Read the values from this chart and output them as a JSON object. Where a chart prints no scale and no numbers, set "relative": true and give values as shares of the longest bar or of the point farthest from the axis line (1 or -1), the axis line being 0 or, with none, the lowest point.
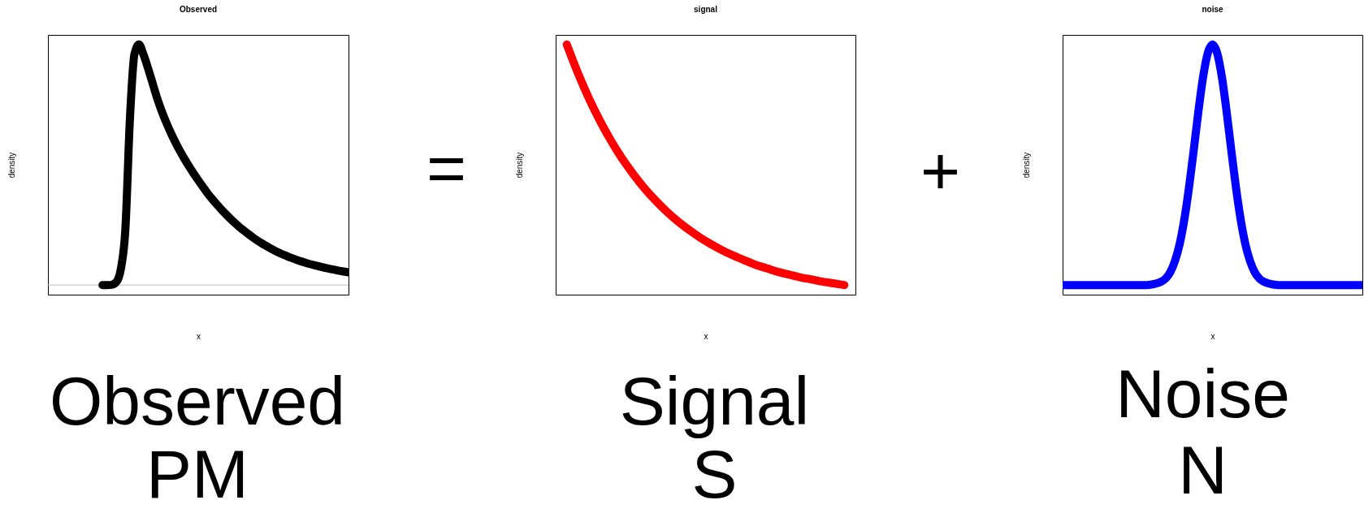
{
  "chart_data": [
    {
      "type": "line",
      "title": "Observed",
      "xlabel": "x",
      "ylabel": "density",
      "relative": true,
      "categories": [
        null,
        null,
        null,
        null,
        null,
        null,
        null,
        null,
        null,
        null,
        null,
        null,
        null,
        null,
        null,
        null,
        null,
        null,
        null,
        null,
        null,
        null,
        null,
        null,
        null,
        null,
        null,
        null,
        null,
        null,
        null,
        null,
        null,
        null,
        null,
        null,
        null,
        null,
        null,
        null,
        null,
        null,
        null,
        null,
        null,
        null,
        null,
        null,
        null,
        null,
        null,
        null,
        null,
        null,
        null,
        null,
        null,
        null,
        null,
        null,
        null,
        null,
        null,
        null,
        null,
        null,
        null
      ],
      "series": [
        {
          "color": "#000000",
          "values": [
            null,
            null,
            null,
            null,
            null,
            null,
            null,
            null,
            null,
            null,
            null,
            null,
            0,
            0,
            0.001,
            0.012,
            0.066,
            0.23,
            0.69,
            0.96,
            1,
            0.957,
            0.9,
            0.838,
            0.776,
            0.722,
            0.675,
            0.632,
            0.593,
            0.557,
            0.524,
            0.493,
            0.464,
            0.436,
            0.409,
            0.383,
            0.359,
            0.337,
            0.316,
            0.296,
            0.277,
            0.259,
            0.242,
            0.227,
            0.212,
            0.198,
            0.185,
            0.173,
            0.162,
            0.151,
            0.141,
            0.132,
            0.124,
            0.116,
            0.109,
            0.102,
            0.096,
            0.09,
            0.085,
            0.08,
            0.075,
            0.071,
            0.067,
            0.063,
            0.059,
            0.056,
            0.053
          ]
        }
      ],
      "ref_lines": [
        {
          "axis": "y",
          "value": 0,
          "color": "#bebebe"
        }
      ],
      "annotations": [
        "Observed",
        "PM"
      ]
    },
    {
      "type": "other",
      "annotations": [
        "="
      ]
    },
    {
      "type": "line",
      "title": "signal",
      "xlabel": "x",
      "ylabel": "density",
      "relative": true,
      "categories": [
        null,
        null,
        null,
        null,
        null,
        null,
        null,
        null,
        null,
        null,
        null,
        null,
        null,
        null,
        null,
        null,
        null,
        null,
        null,
        null,
        null,
        null,
        null,
        null,
        null,
        null,
        null,
        null
      ],
      "series": [
        {
          "color": "#ff0000",
          "values": [
            null,
            1,
            0.886,
            0.784,
            0.694,
            0.614,
            0.543,
            0.481,
            0.425,
            0.376,
            0.332,
            0.293,
            0.259,
            0.228,
            0.201,
            0.177,
            0.156,
            0.137,
            0.119,
            0.105,
            0.091,
            0.08,
            0.069,
            0.061,
            0.052,
            0.045,
            0.038,
            null
          ]
        }
      ],
      "annotations": [
        "Signal",
        "S"
      ]
    },
    {
      "type": "other",
      "annotations": [
        "+"
      ]
    },
    {
      "type": "line",
      "title": "noise",
      "xlabel": "x",
      "ylabel": "density",
      "relative": true,
      "categories": [
        null,
        null,
        null,
        null,
        null,
        null,
        null,
        null,
        null,
        null,
        null,
        null,
        null,
        null,
        null,
        null,
        null,
        null,
        null,
        null,
        null,
        null,
        null,
        null,
        null,
        null,
        null,
        null,
        null,
        null,
        null,
        null,
        null,
        null,
        null,
        null,
        null,
        null,
        null,
        null,
        null,
        null,
        null,
        null,
        null,
        null,
        null,
        null,
        null,
        null,
        null,
        null,
        null,
        null,
        null,
        null,
        null,
        null,
        null,
        null,
        null,
        null,
        null,
        null,
        null
      ],
      "series": [
        {
          "color": "#0000ff",
          "values": [
            0.038,
            0.038,
            0.038,
            0.038,
            0.038,
            0.038,
            0.038,
            0.038,
            0.038,
            0.038,
            0.038,
            0.038,
            0.038,
            0.038,
            0.038,
            0.038,
            0.038,
            0.038,
            0.038,
            0.04,
            0.044,
            0.051,
            0.064,
            0.09,
            0.135,
            0.203,
            0.302,
            0.43,
            0.579,
            0.734,
            0.871,
            0.966,
            1,
            0.966,
            0.871,
            0.734,
            0.579,
            0.43,
            0.302,
            0.203,
            0.135,
            0.09,
            0.064,
            0.051,
            0.044,
            0.04,
            0.038,
            0.038,
            0.038,
            0.038,
            0.038,
            0.038,
            0.038,
            0.038,
            0.038,
            0.038,
            0.038,
            0.038,
            0.038,
            0.038,
            0.038,
            0.038,
            0.038,
            0.038,
            0.038
          ]
        }
      ],
      "annotations": [
        "Noise",
        "N"
      ]
    }
  ]
}
